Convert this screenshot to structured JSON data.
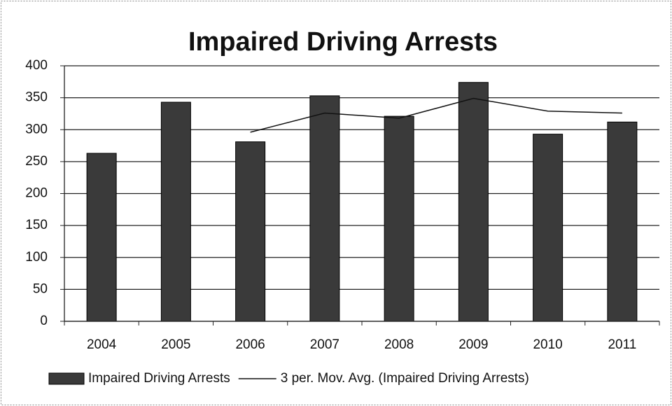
{
  "chart_data": {
    "type": "bar",
    "title": "Impaired Driving Arrests",
    "categories": [
      "2004",
      "2005",
      "2006",
      "2007",
      "2008",
      "2009",
      "2010",
      "2011"
    ],
    "series": [
      {
        "name": "Impaired Driving Arrests",
        "type": "bar",
        "color": "#3a3a3a",
        "values": [
          263,
          343,
          281,
          353,
          321,
          374,
          293,
          312
        ]
      },
      {
        "name": "3 per. Mov. Avg. (Impaired Driving Arrests)",
        "type": "line",
        "color": "#111111",
        "values": [
          null,
          null,
          296,
          326,
          318,
          349,
          329,
          326
        ]
      }
    ],
    "ylim": [
      0,
      400
    ],
    "yticks": [
      0,
      50,
      100,
      150,
      200,
      250,
      300,
      350,
      400
    ],
    "grid": true,
    "legend": "bottom"
  }
}
